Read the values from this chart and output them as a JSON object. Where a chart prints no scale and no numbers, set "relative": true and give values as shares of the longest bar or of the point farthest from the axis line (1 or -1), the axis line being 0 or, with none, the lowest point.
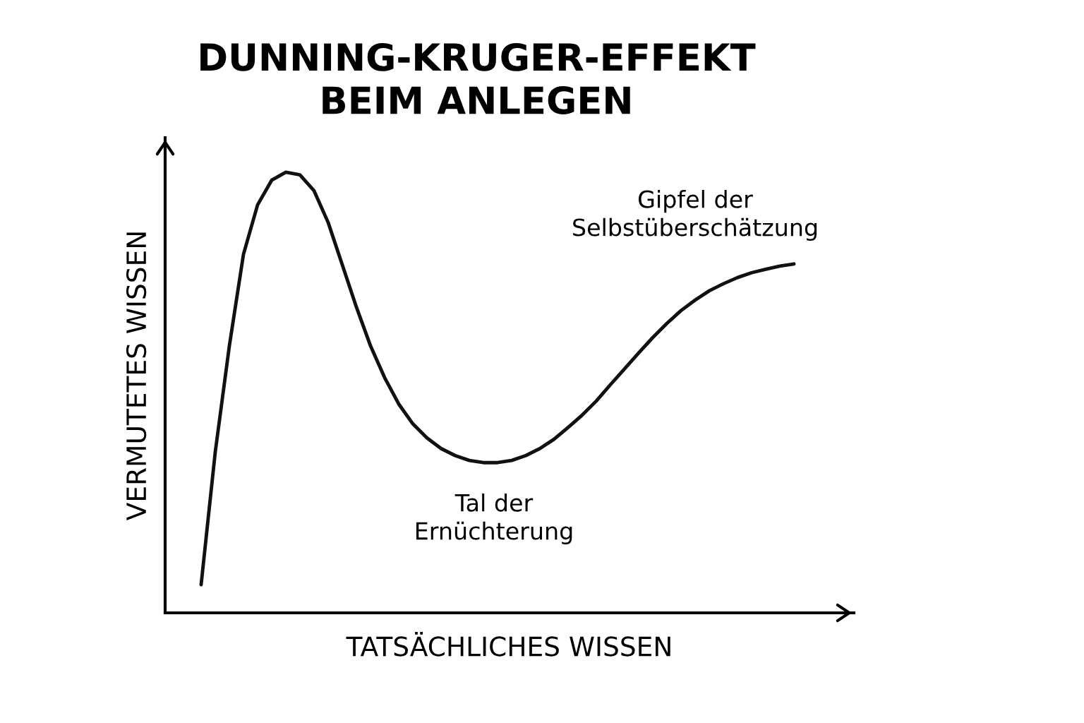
{
  "chart_data": {
    "type": "line",
    "title": "DUNNING-KRUGER-EFFEKT\nBEIM ANLEGEN",
    "xlabel": "TATSÄCHLICHES WISSEN",
    "ylabel": "VERMUTETES WISSEN",
    "relative": true,
    "categories": [
      null,
      null,
      null,
      null,
      null,
      null,
      null,
      null,
      null,
      null,
      null,
      null,
      null,
      null,
      null,
      null,
      null,
      null,
      null,
      null,
      null,
      null,
      null,
      null,
      null,
      null,
      null,
      null,
      null,
      null,
      null,
      null,
      null,
      null,
      null,
      null,
      null,
      null,
      null,
      null,
      null,
      null,
      null
    ],
    "series": [
      {
        "color": "#111111",
        "values": [
          0.064,
          0.365,
          0.606,
          0.814,
          0.926,
          0.982,
          1,
          0.994,
          0.958,
          0.886,
          0.79,
          0.694,
          0.606,
          0.534,
          0.474,
          0.429,
          0.397,
          0.373,
          0.357,
          0.346,
          0.341,
          0.341,
          0.346,
          0.357,
          0.373,
          0.394,
          0.421,
          0.449,
          0.481,
          0.518,
          0.554,
          0.59,
          0.625,
          0.657,
          0.686,
          0.71,
          0.731,
          0.747,
          0.761,
          0.772,
          0.78,
          0.787,
          0.792
        ]
      }
    ],
    "annotations": [
      "Tal der\nErnüchterung",
      "Gipfel der\nSelbstüberschätzung"
    ],
    "grid": false,
    "marker": "none",
    "line_style": "solid"
  }
}
